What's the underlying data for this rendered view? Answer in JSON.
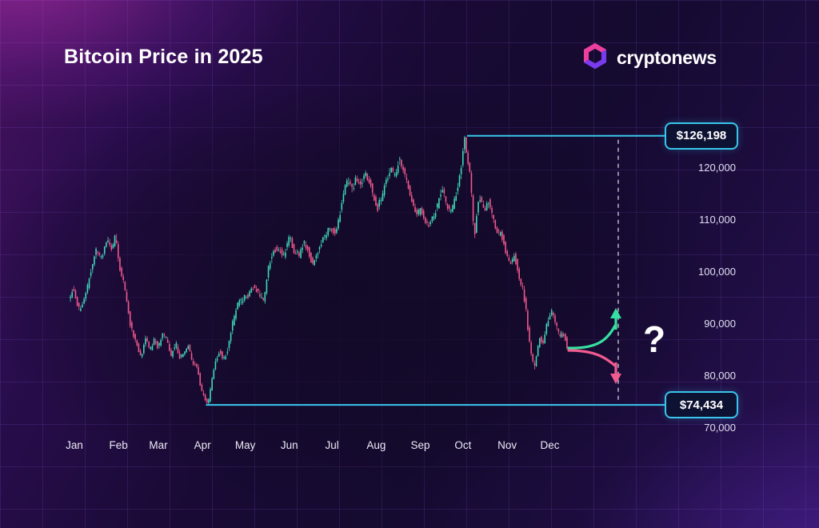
{
  "header": {
    "title": "Bitcoin Price in 2025",
    "brand": "cryptonews"
  },
  "axis": {
    "months": [
      "Jan",
      "Feb",
      "Mar",
      "Apr",
      "May",
      "Jun",
      "Jul",
      "Aug",
      "Sep",
      "Oct",
      "Nov",
      "Dec"
    ],
    "y_labels": [
      "120,000",
      "110,000",
      "100,000",
      "90,000",
      "80,000",
      "70,000"
    ]
  },
  "callouts": {
    "high": "$126,198",
    "low": "$74,434"
  },
  "annotations": {
    "question_mark": "?"
  },
  "colors": {
    "candle_up": "#3fd9b8",
    "candle_down": "#f0598c",
    "reference_line": "#38c6ec",
    "arrow_up": "#35e0a0",
    "arrow_down": "#f25b90",
    "dashed_line": "rgba(255,255,255,0.75)",
    "logo_pink": "#ec3f9e",
    "logo_purple": "#7a3bf0"
  },
  "chart_data": {
    "type": "candlestick",
    "title": "Bitcoin Price in 2025",
    "x_unit": "day_of_year_2025",
    "categories_months": [
      "Jan",
      "Feb",
      "Mar",
      "Apr",
      "May",
      "Jun",
      "Jul",
      "Aug",
      "Sep",
      "Oct",
      "Nov",
      "Dec"
    ],
    "month_start_days": [
      1,
      32,
      60,
      91,
      121,
      152,
      182,
      213,
      244,
      274,
      305,
      335
    ],
    "days_span": 351,
    "y_ticks": [
      70000,
      80000,
      90000,
      100000,
      110000,
      120000
    ],
    "annotated_high": 126198,
    "annotated_low": 74434,
    "price_path_anchors": [
      [
        1,
        94500
      ],
      [
        4,
        97200
      ],
      [
        8,
        92800
      ],
      [
        12,
        94500
      ],
      [
        16,
        99500
      ],
      [
        20,
        104000
      ],
      [
        24,
        102500
      ],
      [
        28,
        106500
      ],
      [
        31,
        104500
      ],
      [
        34,
        107000
      ],
      [
        36,
        101500
      ],
      [
        40,
        97500
      ],
      [
        44,
        90000
      ],
      [
        48,
        86500
      ],
      [
        52,
        83500
      ],
      [
        55,
        87500
      ],
      [
        58,
        85000
      ],
      [
        61,
        87000
      ],
      [
        64,
        85500
      ],
      [
        67,
        88000
      ],
      [
        70,
        87000
      ],
      [
        73,
        84000
      ],
      [
        76,
        86500
      ],
      [
        79,
        83500
      ],
      [
        82,
        84500
      ],
      [
        85,
        86000
      ],
      [
        88,
        82500
      ],
      [
        91,
        82000
      ],
      [
        94,
        77500
      ],
      [
        96,
        76000
      ],
      [
        99,
        74800
      ],
      [
        101,
        78500
      ],
      [
        104,
        83000
      ],
      [
        107,
        84800
      ],
      [
        110,
        83200
      ],
      [
        113,
        85500
      ],
      [
        116,
        90000
      ],
      [
        119,
        93500
      ],
      [
        123,
        94800
      ],
      [
        127,
        95500
      ],
      [
        131,
        97300
      ],
      [
        135,
        95800
      ],
      [
        138,
        94200
      ],
      [
        141,
        100500
      ],
      [
        144,
        103800
      ],
      [
        148,
        104800
      ],
      [
        152,
        103200
      ],
      [
        156,
        106800
      ],
      [
        159,
        104200
      ],
      [
        163,
        103000
      ],
      [
        166,
        105800
      ],
      [
        169,
        104400
      ],
      [
        172,
        101600
      ],
      [
        175,
        103000
      ],
      [
        178,
        105500
      ],
      [
        181,
        107200
      ],
      [
        184,
        108300
      ],
      [
        188,
        107500
      ],
      [
        191,
        110500
      ],
      [
        194,
        115500
      ],
      [
        197,
        117800
      ],
      [
        200,
        115800
      ],
      [
        203,
        118200
      ],
      [
        206,
        116500
      ],
      [
        209,
        119000
      ],
      [
        212,
        117800
      ],
      [
        215,
        114200
      ],
      [
        218,
        112300
      ],
      [
        221,
        114800
      ],
      [
        224,
        117500
      ],
      [
        227,
        120200
      ],
      [
        230,
        118300
      ],
      [
        233,
        121800
      ],
      [
        236,
        119500
      ],
      [
        239,
        117000
      ],
      [
        242,
        113800
      ],
      [
        245,
        110800
      ],
      [
        248,
        111800
      ],
      [
        251,
        110200
      ],
      [
        254,
        108800
      ],
      [
        257,
        110500
      ],
      [
        260,
        112800
      ],
      [
        263,
        116300
      ],
      [
        266,
        113200
      ],
      [
        269,
        111200
      ],
      [
        272,
        113800
      ],
      [
        275,
        117500
      ],
      [
        277,
        121000
      ],
      [
        279,
        126198
      ],
      [
        281,
        121500
      ],
      [
        283,
        119000
      ],
      [
        285,
        109500
      ],
      [
        286,
        106800
      ],
      [
        288,
        112800
      ],
      [
        290,
        114500
      ],
      [
        293,
        111800
      ],
      [
        296,
        113500
      ],
      [
        299,
        110000
      ],
      [
        302,
        107800
      ],
      [
        305,
        107000
      ],
      [
        308,
        104000
      ],
      [
        311,
        101500
      ],
      [
        314,
        103500
      ],
      [
        317,
        99000
      ],
      [
        320,
        96800
      ],
      [
        322,
        93000
      ],
      [
        324,
        88000
      ],
      [
        326,
        83800
      ],
      [
        328,
        81500
      ],
      [
        330,
        84800
      ],
      [
        332,
        87500
      ],
      [
        334,
        86200
      ],
      [
        337,
        90500
      ],
      [
        340,
        92500
      ],
      [
        343,
        89800
      ],
      [
        346,
        87500
      ],
      [
        349,
        88200
      ],
      [
        351,
        85300
      ]
    ]
  }
}
